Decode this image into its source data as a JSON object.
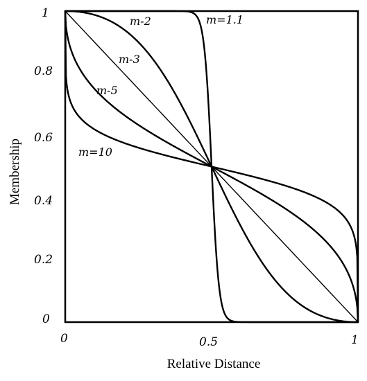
{
  "chart_data": {
    "type": "line",
    "title": "",
    "xlabel": "Relative Distance",
    "ylabel": "Membership",
    "xlim": [
      0,
      1
    ],
    "ylim": [
      0,
      1
    ],
    "grid": false,
    "legend": "none",
    "x_ticks": [
      "0",
      "0.5",
      "1"
    ],
    "y_ticks": [
      "0",
      "0.2",
      "0.4",
      "0.6",
      "0.8",
      "1"
    ],
    "line_color": "#000000",
    "series": [
      {
        "name": "m=1.1",
        "m": 1.1,
        "x": [
          0,
          0.1,
          0.2,
          0.3,
          0.4,
          0.45,
          0.48,
          0.5,
          0.52,
          0.55,
          0.6,
          0.7,
          0.8,
          0.9,
          1
        ],
        "y": [
          1,
          1,
          1,
          1,
          0.99,
          0.96,
          0.79,
          0.5,
          0.21,
          0.04,
          0.01,
          0,
          0,
          0,
          0
        ]
      },
      {
        "name": "m-2",
        "m": 2,
        "x": [
          0,
          0.1,
          0.2,
          0.3,
          0.4,
          0.5,
          0.6,
          0.7,
          0.8,
          0.9,
          1
        ],
        "y": [
          1,
          0.99,
          0.94,
          0.84,
          0.69,
          0.5,
          0.31,
          0.16,
          0.06,
          0.01,
          0
        ]
      },
      {
        "name": "m-3",
        "m": 3,
        "x": [
          0,
          0.1,
          0.2,
          0.3,
          0.4,
          0.5,
          0.6,
          0.7,
          0.8,
          0.9,
          1
        ],
        "y": [
          1,
          0.9,
          0.8,
          0.7,
          0.6,
          0.5,
          0.4,
          0.3,
          0.2,
          0.1,
          0
        ]
      },
      {
        "name": "m-5",
        "m": 5,
        "x": [
          0,
          0.1,
          0.2,
          0.3,
          0.4,
          0.5,
          0.6,
          0.7,
          0.8,
          0.9,
          1
        ],
        "y": [
          1,
          0.75,
          0.67,
          0.6,
          0.55,
          0.5,
          0.45,
          0.4,
          0.33,
          0.25,
          0
        ]
      },
      {
        "name": "m=10",
        "m": 10,
        "x": [
          0,
          0.1,
          0.2,
          0.3,
          0.4,
          0.5,
          0.6,
          0.7,
          0.8,
          0.9,
          1
        ],
        "y": [
          1,
          0.62,
          0.58,
          0.55,
          0.52,
          0.5,
          0.48,
          0.45,
          0.42,
          0.38,
          0
        ]
      }
    ]
  }
}
